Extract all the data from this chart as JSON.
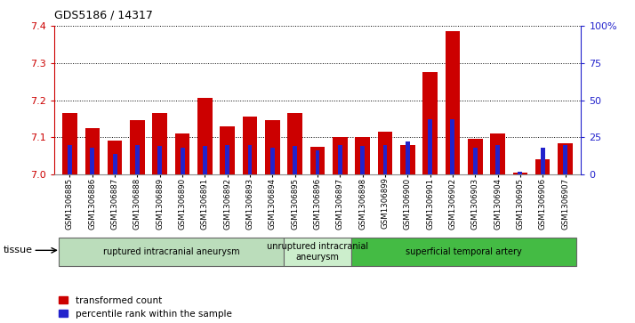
{
  "title": "GDS5186 / 14317",
  "samples": [
    "GSM1306885",
    "GSM1306886",
    "GSM1306887",
    "GSM1306888",
    "GSM1306889",
    "GSM1306890",
    "GSM1306891",
    "GSM1306892",
    "GSM1306893",
    "GSM1306894",
    "GSM1306895",
    "GSM1306896",
    "GSM1306897",
    "GSM1306898",
    "GSM1306899",
    "GSM1306900",
    "GSM1306901",
    "GSM1306902",
    "GSM1306903",
    "GSM1306904",
    "GSM1306905",
    "GSM1306906",
    "GSM1306907"
  ],
  "red_values": [
    7.165,
    7.125,
    7.09,
    7.145,
    7.165,
    7.11,
    7.205,
    7.13,
    7.155,
    7.145,
    7.165,
    7.075,
    7.1,
    7.1,
    7.115,
    7.08,
    7.275,
    7.385,
    7.095,
    7.11,
    7.005,
    7.04,
    7.085
  ],
  "blue_values": [
    20,
    18,
    14,
    20,
    19,
    18,
    19,
    20,
    20,
    18,
    19,
    16,
    20,
    19,
    20,
    22,
    37,
    37,
    18,
    20,
    2,
    18,
    20
  ],
  "ylim_left": [
    7.0,
    7.4
  ],
  "ylim_right": [
    0,
    100
  ],
  "yticks_left": [
    7.0,
    7.1,
    7.2,
    7.3,
    7.4
  ],
  "yticks_right": [
    0,
    25,
    50,
    75,
    100
  ],
  "ytick_labels_right": [
    "0",
    "25",
    "50",
    "75",
    "100%"
  ],
  "red_color": "#cc0000",
  "blue_color": "#2222cc",
  "groups": [
    {
      "label": "ruptured intracranial aneurysm",
      "start": 0,
      "end": 10,
      "color": "#bbddbb"
    },
    {
      "label": "unruptured intracranial\naneurysm",
      "start": 10,
      "end": 13,
      "color": "#cceecc"
    },
    {
      "label": "superficial temporal artery",
      "start": 13,
      "end": 23,
      "color": "#44bb44"
    }
  ],
  "left_axis_color": "#cc0000",
  "right_axis_color": "#2222cc"
}
